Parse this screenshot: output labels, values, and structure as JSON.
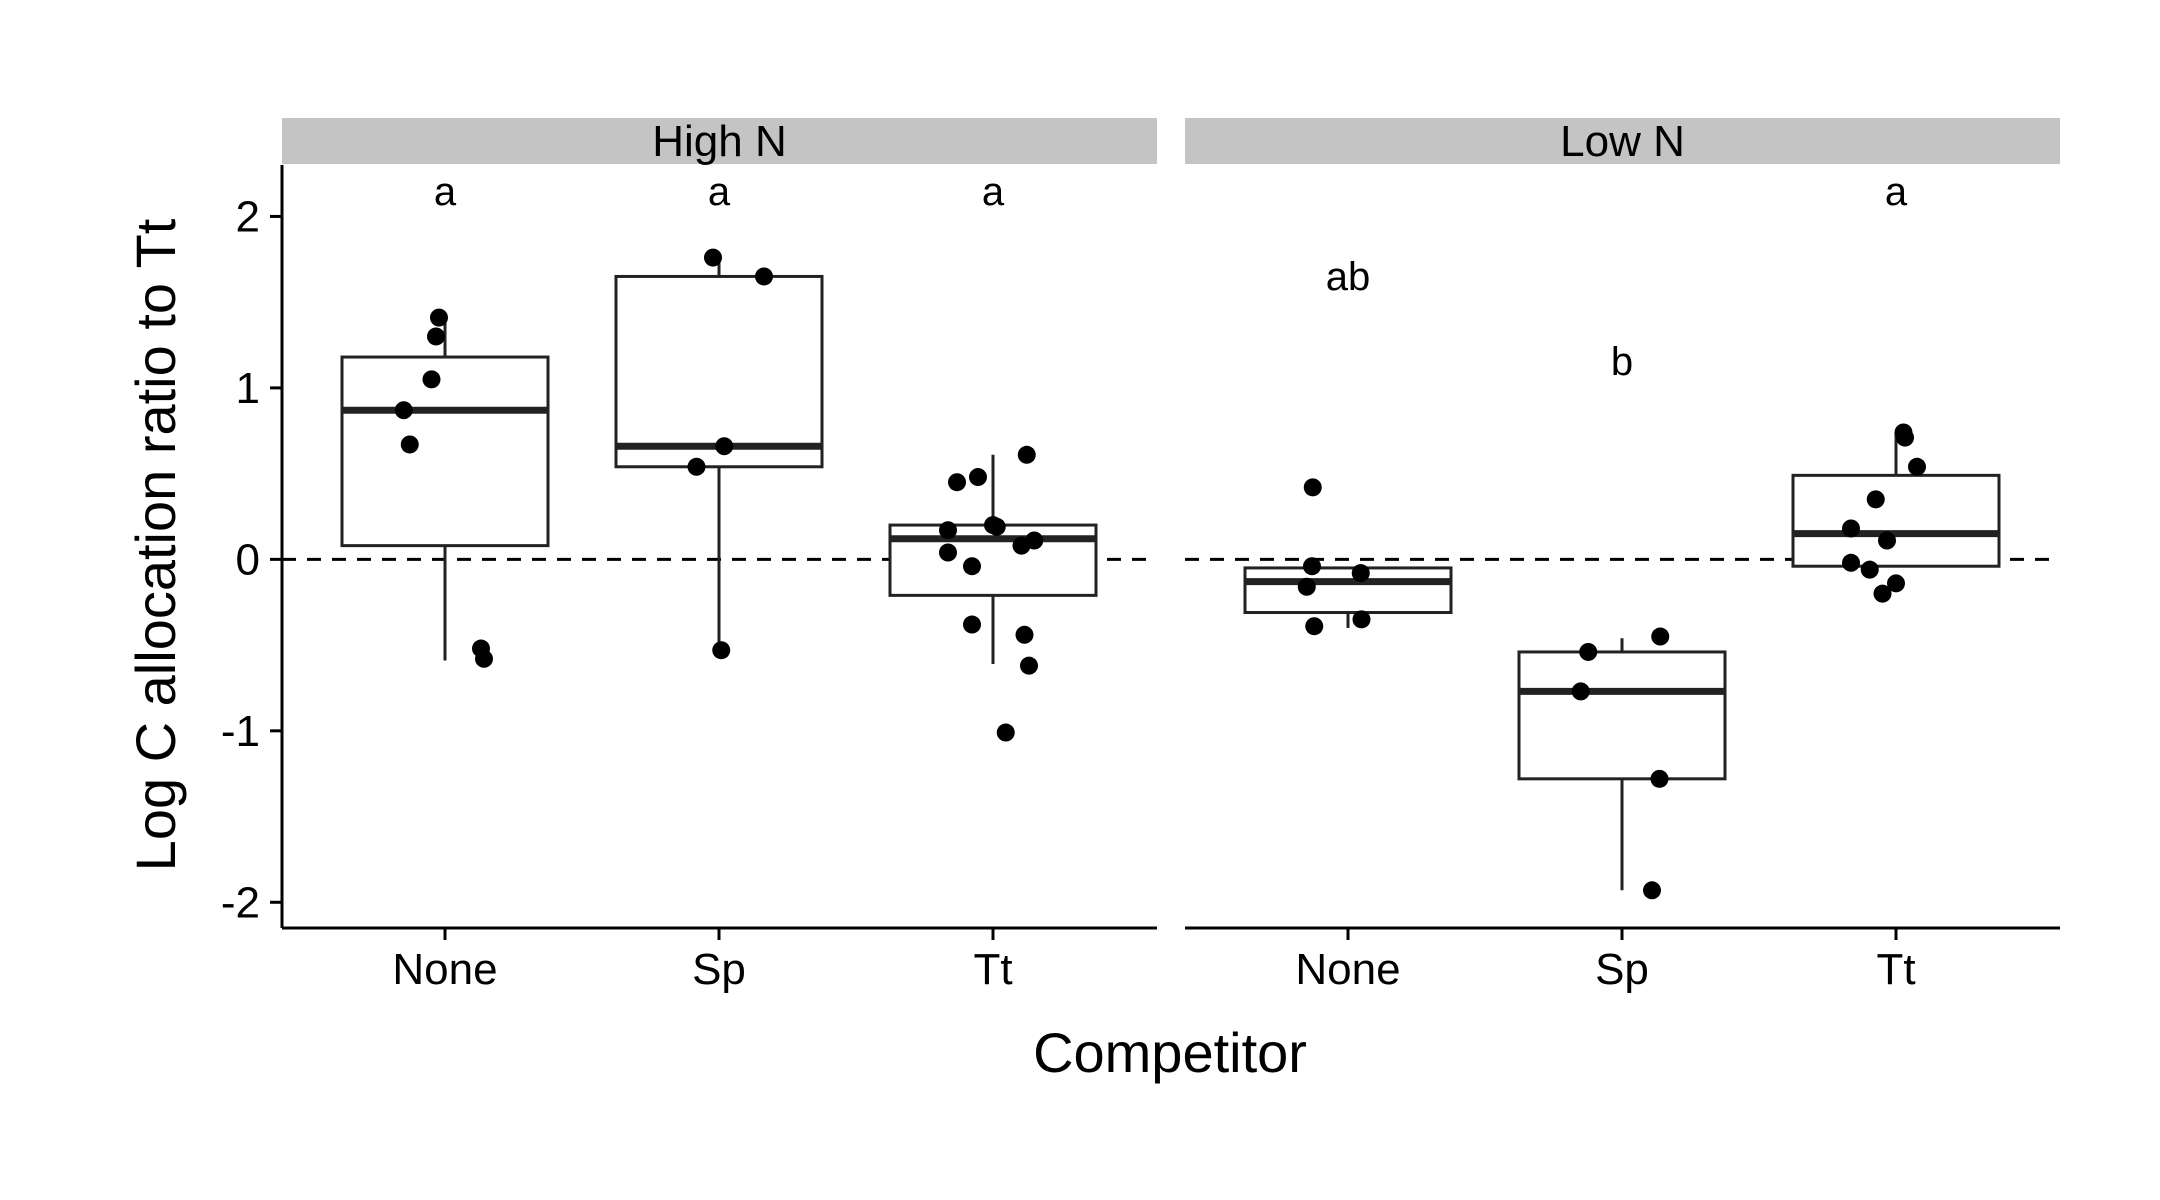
{
  "chart_data": {
    "type": "box",
    "xlabel": "Competitor",
    "ylabel": "Log C allocation ratio to Tt",
    "ylim": [
      -2.15,
      2.3
    ],
    "yticks": [
      -2,
      -1,
      0,
      1,
      2
    ],
    "reference_line": {
      "y": 0,
      "style": "dashed"
    },
    "categories": [
      "None",
      "Sp",
      "Tt"
    ],
    "panels": [
      {
        "label": "High N",
        "groups": [
          {
            "category": "None",
            "letter": "a",
            "q1": 0.08,
            "median": 0.87,
            "q3": 1.18,
            "whisker_low": -0.59,
            "whisker_high": 1.4,
            "points": [
              [
                -0.08,
                1.41
              ],
              [
                -0.12,
                1.3
              ],
              [
                -0.18,
                1.05
              ],
              [
                -0.55,
                0.87
              ],
              [
                -0.47,
                0.67
              ],
              [
                0.48,
                -0.52
              ],
              [
                0.52,
                -0.58
              ]
            ]
          },
          {
            "category": "Sp",
            "letter": "a",
            "q1": 0.54,
            "median": 0.66,
            "q3": 1.65,
            "whisker_low": -0.53,
            "whisker_high": 1.76,
            "points": [
              [
                -0.08,
                1.76
              ],
              [
                0.6,
                1.65
              ],
              [
                0.07,
                0.66
              ],
              [
                -0.3,
                0.54
              ],
              [
                0.03,
                -0.53
              ]
            ]
          },
          {
            "category": "Tt",
            "letter": "a",
            "q1": -0.21,
            "median": 0.12,
            "q3": 0.2,
            "whisker_low": -0.61,
            "whisker_high": 0.61,
            "points": [
              [
                0.45,
                0.61
              ],
              [
                -0.48,
                0.45
              ],
              [
                -0.2,
                0.48
              ],
              [
                0.0,
                0.2
              ],
              [
                -0.6,
                0.17
              ],
              [
                0.05,
                0.19
              ],
              [
                0.55,
                0.11
              ],
              [
                0.38,
                0.08
              ],
              [
                -0.6,
                0.04
              ],
              [
                -0.28,
                -0.04
              ],
              [
                -0.28,
                -0.38
              ],
              [
                0.42,
                -0.44
              ],
              [
                0.48,
                -0.62
              ],
              [
                0.17,
                -1.01
              ]
            ]
          }
        ]
      },
      {
        "label": "Low N",
        "groups": [
          {
            "category": "None",
            "letter": "ab",
            "q1": -0.31,
            "median": -0.13,
            "q3": -0.05,
            "whisker_low": -0.4,
            "whisker_high": -0.05,
            "points": [
              [
                -0.47,
                0.42
              ],
              [
                -0.48,
                -0.04
              ],
              [
                0.17,
                -0.08
              ],
              [
                -0.55,
                -0.16
              ],
              [
                0.18,
                -0.35
              ],
              [
                -0.45,
                -0.39
              ]
            ]
          },
          {
            "category": "Sp",
            "letter": "b",
            "q1": -1.28,
            "median": -0.77,
            "q3": -0.54,
            "whisker_low": -1.93,
            "whisker_high": -0.46,
            "points": [
              [
                -0.45,
                -0.54
              ],
              [
                0.51,
                -0.45
              ],
              [
                -0.55,
                -0.77
              ],
              [
                0.5,
                -1.28
              ],
              [
                0.4,
                -1.93
              ]
            ]
          },
          {
            "category": "Tt",
            "letter": "a",
            "q1": -0.04,
            "median": 0.15,
            "q3": 0.49,
            "whisker_low": -0.04,
            "whisker_high": 0.74,
            "points": [
              [
                0.1,
                0.74
              ],
              [
                0.12,
                0.71
              ],
              [
                0.28,
                0.54
              ],
              [
                -0.27,
                0.35
              ],
              [
                -0.6,
                0.18
              ],
              [
                -0.12,
                0.11
              ],
              [
                -0.6,
                -0.02
              ],
              [
                -0.35,
                -0.06
              ],
              [
                -0.18,
                -0.2
              ],
              [
                0.0,
                -0.14
              ]
            ]
          }
        ]
      }
    ]
  }
}
